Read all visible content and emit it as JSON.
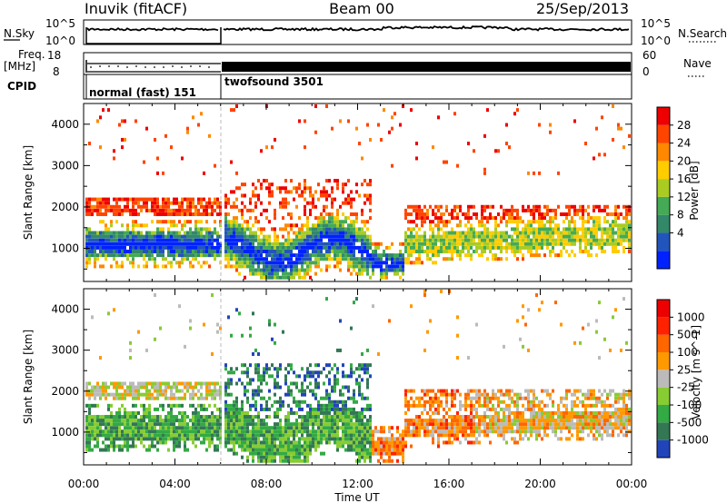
{
  "header": {
    "left_title": "Inuvik (fitACF)",
    "center_title": "Beam 00",
    "right_title": "25/Sep/2013"
  },
  "top_panels": {
    "nsky": {
      "label": "N.Sky",
      "left_ticks": [
        "10^5",
        "10^0"
      ],
      "right_ticks": [
        "10^5",
        "10^0"
      ],
      "right_label": "N.Search"
    },
    "freq": {
      "label_line1": "Freq.",
      "label_line2": "[MHz]",
      "left_ticks": [
        "18",
        "8"
      ],
      "right_ticks": [
        "60",
        "0"
      ],
      "right_label": "Nave"
    },
    "cpid": {
      "label": "CPID",
      "segments": [
        {
          "name": "normal (fast) 151",
          "start_hour": 0.0,
          "end_hour": 6.0
        },
        {
          "name": "twofsound 3501",
          "start_hour": 6.0,
          "end_hour": 24.0
        }
      ]
    }
  },
  "chart_data": [
    {
      "type": "heatmap",
      "title": "",
      "xlabel": "Time UT",
      "ylabel": "Slant Range [km]",
      "xlim": [
        0,
        24
      ],
      "ylim": [
        200,
        4500
      ],
      "x_ticks": [
        "00:00",
        "04:00",
        "08:00",
        "12:00",
        "16:00",
        "20:00",
        "00:00"
      ],
      "y_ticks": [
        1000,
        2000,
        3000,
        4000
      ],
      "colorbar": {
        "label": "Power [dB]",
        "ticks": [
          "28",
          "24",
          "20",
          "16",
          "12",
          "8",
          "4"
        ],
        "colors": [
          "#0022ff",
          "#2255bb",
          "#33886a",
          "#44aa55",
          "#aacc22",
          "#ffcc00",
          "#ff8800",
          "#ff4400",
          "#ee0000"
        ]
      }
    },
    {
      "type": "heatmap",
      "title": "",
      "xlabel": "Time UT",
      "ylabel": "Slant Range [km]",
      "xlim": [
        0,
        24
      ],
      "ylim": [
        200,
        4500
      ],
      "x_ticks": [
        "00:00",
        "04:00",
        "08:00",
        "12:00",
        "16:00",
        "20:00",
        "00:00"
      ],
      "y_ticks": [
        1000,
        2000,
        3000,
        4000
      ],
      "colorbar": {
        "label": "Velocity [m s^-1]",
        "ticks": [
          "1000",
          "500",
          "100",
          "25",
          "-25",
          "-100",
          "-500",
          "-1000"
        ],
        "colors": [
          "#2244bb",
          "#337755",
          "#33aa44",
          "#88cc33",
          "#bbbbbb",
          "#ff9900",
          "#ff6600",
          "#ff2200",
          "#ee0000"
        ]
      }
    }
  ]
}
